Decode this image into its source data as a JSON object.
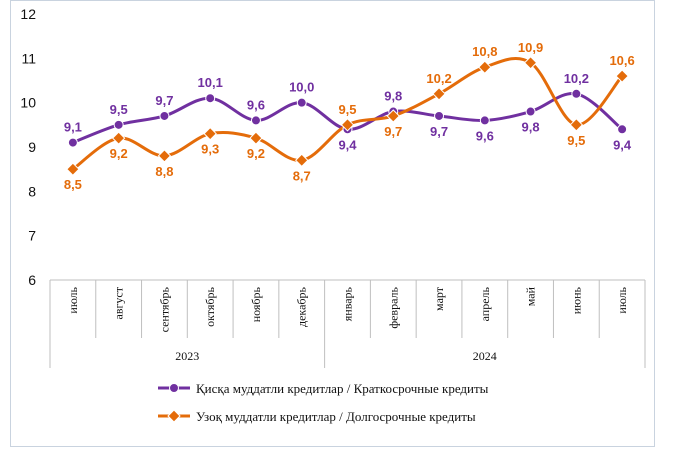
{
  "chart_data": {
    "type": "line",
    "title": "",
    "xlabel": "",
    "ylabel": "",
    "ylim": [
      6,
      12
    ],
    "yticks": [
      6,
      7,
      8,
      9,
      10,
      11,
      12
    ],
    "categories": [
      "июль",
      "август",
      "сентябрь",
      "октябрь",
      "ноябрь",
      "декабрь",
      "январь",
      "февраль",
      "март",
      "апрель",
      "май",
      "июнь",
      "июль"
    ],
    "groups": [
      {
        "label": "2023",
        "count": 6
      },
      {
        "label": "2024",
        "count": 7
      }
    ],
    "series": [
      {
        "name": "Қисқа муддатли кредитлар  / Краткосрочные кредиты",
        "color": "#7030a0",
        "marker": "circle",
        "values": [
          9.1,
          9.5,
          9.7,
          10.1,
          9.6,
          10.0,
          9.4,
          9.8,
          9.7,
          9.6,
          9.8,
          10.2,
          9.4
        ],
        "labels": [
          "9,1",
          "9,5",
          "9,7",
          "10,1",
          "9,6",
          "10,0",
          "9,4",
          "9,8",
          "9,7",
          "9,6",
          "9,8",
          "10,2",
          "9,4"
        ]
      },
      {
        "name": "Узоқ муддатли  кредитлар  / Долгосрочные кредиты",
        "color": "#e46c0a",
        "marker": "diamond",
        "values": [
          8.5,
          9.2,
          8.8,
          9.3,
          9.2,
          8.7,
          9.5,
          9.7,
          10.2,
          10.8,
          10.9,
          9.5,
          10.6
        ],
        "labels": [
          "8,5",
          "9,2",
          "8,8",
          "9,3",
          "9,2",
          "8,7",
          "9,5",
          "9,7",
          "10,2",
          "10,8",
          "10,9",
          "9,5",
          "10,6"
        ]
      }
    ],
    "grid": false,
    "legend": "bottom"
  }
}
